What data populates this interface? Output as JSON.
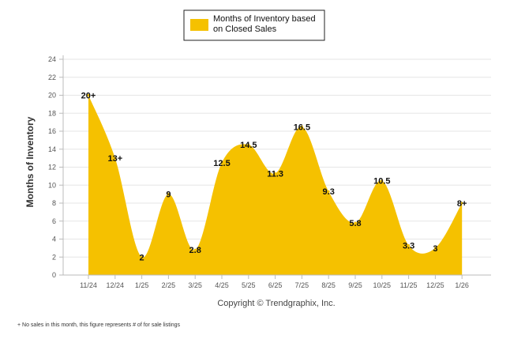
{
  "chart_data": {
    "type": "area",
    "title": "",
    "xlabel": "",
    "ylabel": "Months of Inventory",
    "ylim": [
      0,
      24
    ],
    "yticks": [
      "0",
      "2",
      "4",
      "6",
      "8",
      "10",
      "12",
      "14",
      "16",
      "18",
      "20",
      "22",
      "24"
    ],
    "grid": true,
    "legend_position": "top",
    "categories": [
      "11/24",
      "12/24",
      "1/25",
      "2/25",
      "3/25",
      "4/25",
      "5/25",
      "6/25",
      "7/25",
      "8/25",
      "9/25",
      "10/25",
      "11/25",
      "12/25",
      "1/26"
    ],
    "series": [
      {
        "name": "Months of Inventory based on Closed Sales",
        "legend_lines": [
          "Months of Inventory based",
          "on Closed Sales"
        ],
        "color": "#f5c100",
        "values": [
          20,
          13,
          2,
          9,
          2.8,
          12.5,
          14.5,
          11.3,
          16.5,
          9.3,
          5.8,
          10.5,
          3.3,
          3,
          8
        ],
        "labels": [
          "20+",
          "13+",
          "2",
          "9",
          "2.8",
          "12.5",
          "14.5",
          "11.3",
          "16.5",
          "9.3",
          "5.8",
          "10.5",
          "3.3",
          "3",
          "8+"
        ]
      }
    ]
  },
  "credit": "Copyright © Trendgraphix, Inc.",
  "footnote": "+ No sales in this month, this figure represents # of for sale listings",
  "colors": {
    "grid": "#e6e6e6",
    "axis": "#bbbbbb",
    "legend_border": "#222222"
  }
}
